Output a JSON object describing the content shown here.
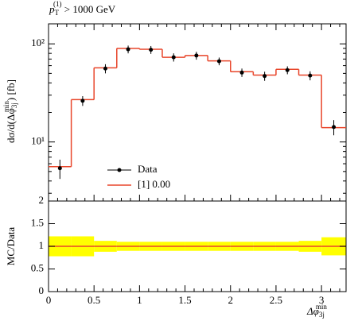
{
  "chart_data": [
    {
      "type": "histogram",
      "title": {
        "base": "p",
        "sub": "T",
        "sup": "(1)",
        "rest": " > 1000 GeV"
      },
      "ylabel": {
        "pre": "dσ/d(Δφ",
        "sub": "3j",
        "sup": "min",
        "post": ") [fb]"
      },
      "bins": [
        0,
        0.25,
        0.5,
        0.75,
        1,
        1.25,
        1.5,
        1.75,
        2,
        2.25,
        2.5,
        2.75,
        3,
        3.27
      ],
      "series": [
        {
          "name": "Data",
          "color": "#000000",
          "values": [
            5.4,
            26.3,
            56,
            88,
            87,
            73,
            76,
            66.5,
            51,
            47,
            54,
            47.5,
            14.2
          ],
          "errors": [
            1.2,
            3,
            6,
            8,
            8,
            7,
            7,
            6,
            5,
            5,
            5,
            5,
            2.5
          ]
        },
        {
          "name": "[1] 0.00",
          "color": "#e8452a",
          "values": [
            5.6,
            27,
            57,
            90,
            88,
            73,
            76,
            67,
            52,
            48,
            55,
            48,
            14
          ]
        }
      ],
      "xlim": [
        0,
        3.27
      ],
      "ylim": [
        2.5,
        160
      ],
      "log_y": true,
      "yticks": [
        {
          "value": 10,
          "label": "10¹"
        },
        {
          "value": 100,
          "label": "10²"
        }
      ],
      "yminor": [
        3,
        4,
        5,
        6,
        7,
        8,
        9,
        20,
        30,
        40,
        50,
        60,
        70,
        80,
        90
      ],
      "legend": "lower center"
    },
    {
      "type": "ratio",
      "ylabel": "MC/Data",
      "xlabel": {
        "pre": "Δφ",
        "sub": "3j",
        "sup": "min"
      },
      "values": [
        1,
        1,
        1,
        1,
        1,
        1,
        1,
        1,
        1,
        1,
        1,
        1,
        1
      ],
      "color": "#e8452a",
      "band_lower": [
        0.78,
        0.78,
        0.88,
        0.9,
        0.9,
        0.9,
        0.9,
        0.9,
        0.9,
        0.9,
        0.9,
        0.88,
        0.8
      ],
      "band_upper": [
        1.22,
        1.22,
        1.12,
        1.1,
        1.1,
        1.1,
        1.1,
        1.1,
        1.1,
        1.1,
        1.1,
        1.12,
        1.2
      ],
      "band_color": "#ffff00",
      "xlim": [
        0,
        3.27
      ],
      "ylim": [
        0,
        2
      ],
      "xticks": [
        0,
        0.5,
        1,
        1.5,
        2,
        2.5,
        3
      ],
      "xminor": [
        0.1,
        0.2,
        0.3,
        0.4,
        0.6,
        0.7,
        0.8,
        0.9,
        1.1,
        1.2,
        1.3,
        1.4,
        1.6,
        1.7,
        1.8,
        1.9,
        2.1,
        2.2,
        2.3,
        2.4,
        2.6,
        2.7,
        2.8,
        2.9,
        3.1,
        3.2
      ],
      "yticks": [
        0,
        0.5,
        1,
        1.5,
        2
      ]
    }
  ]
}
